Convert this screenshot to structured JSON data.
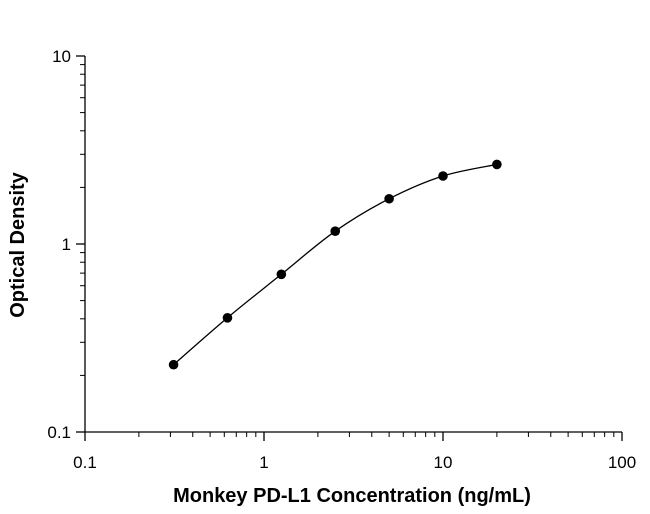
{
  "chart_data": {
    "type": "scatter",
    "title": "",
    "xlabel": "Monkey PD-L1 Concentration (ng/mL)",
    "ylabel": "Optical Density",
    "x_scale": "log",
    "y_scale": "log",
    "xlim": [
      0.1,
      100
    ],
    "ylim": [
      0.1,
      10
    ],
    "x_ticks": [
      0.1,
      1,
      10,
      100
    ],
    "x_tick_labels": [
      "0.1",
      "1",
      "10",
      "100"
    ],
    "y_ticks": [
      0.1,
      1,
      10
    ],
    "y_tick_labels": [
      "0.1",
      "1",
      "10"
    ],
    "grid": false,
    "legend": "none",
    "fit_curve": "smooth",
    "series": [
      {
        "x": [
          0.3125,
          0.625,
          1.25,
          2.5,
          5,
          10,
          20
        ],
        "y": [
          0.228,
          0.405,
          0.69,
          1.17,
          1.74,
          2.3,
          2.65
        ]
      }
    ],
    "colors": {
      "marker": "#000000",
      "line": "#000000",
      "axis": "#000000"
    }
  }
}
